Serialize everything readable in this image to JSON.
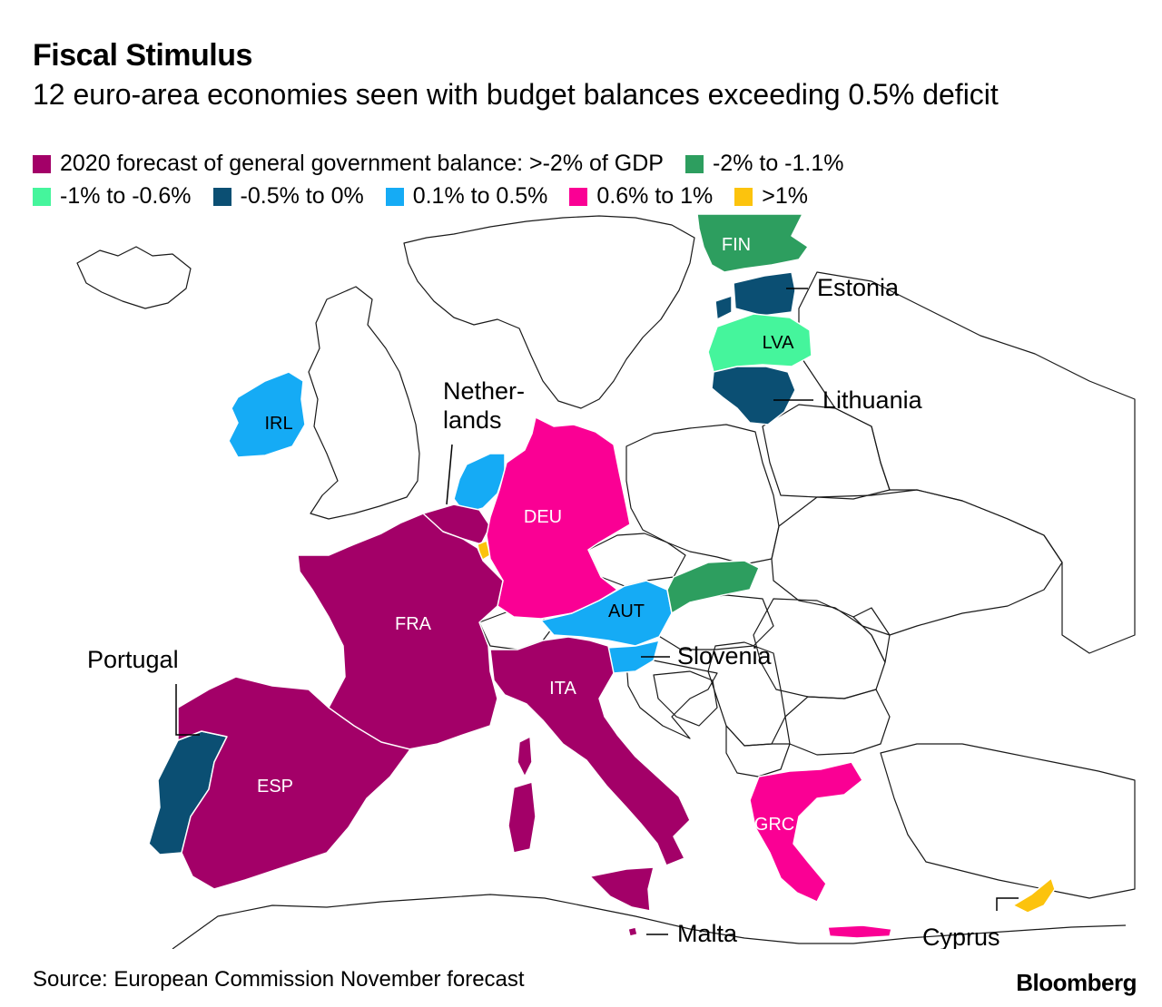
{
  "title": "Fiscal Stimulus",
  "subtitle": "12 euro-area economies seen with budget balances exceeding 0.5% deficit",
  "legend": [
    {
      "label": "2020 forecast of general government balance: >-2% of GDP",
      "color": "#a30068"
    },
    {
      "label": "-2% to -1.1%",
      "color": "#2d9e5f"
    },
    {
      "label": "-1% to -0.6%",
      "color": "#45f59c"
    },
    {
      "label": "-0.5% to 0%",
      "color": "#0b4f73"
    },
    {
      "label": "0.1% to 0.5%",
      "color": "#15abf5"
    },
    {
      "label": "0.6% to 1%",
      "color": "#fa0094"
    },
    {
      "label": ">1%",
      "color": "#fcc30d"
    }
  ],
  "map_labels": {
    "fin": "FIN",
    "lva": "LVA",
    "irl": "IRL",
    "deu": "DEU",
    "aut": "AUT",
    "fra": "FRA",
    "ita": "ITA",
    "esp": "ESP",
    "grc": "GRC"
  },
  "callouts": {
    "estonia": "Estonia",
    "lithuania": "Lithuania",
    "netherlands_1": "Nether-",
    "netherlands_2": "lands",
    "portugal": "Portugal",
    "slovenia": "Slovenia",
    "malta": "Malta",
    "cyprus": "Cyprus"
  },
  "source": "Source: European Commission November forecast",
  "brand": "Bloomberg"
}
